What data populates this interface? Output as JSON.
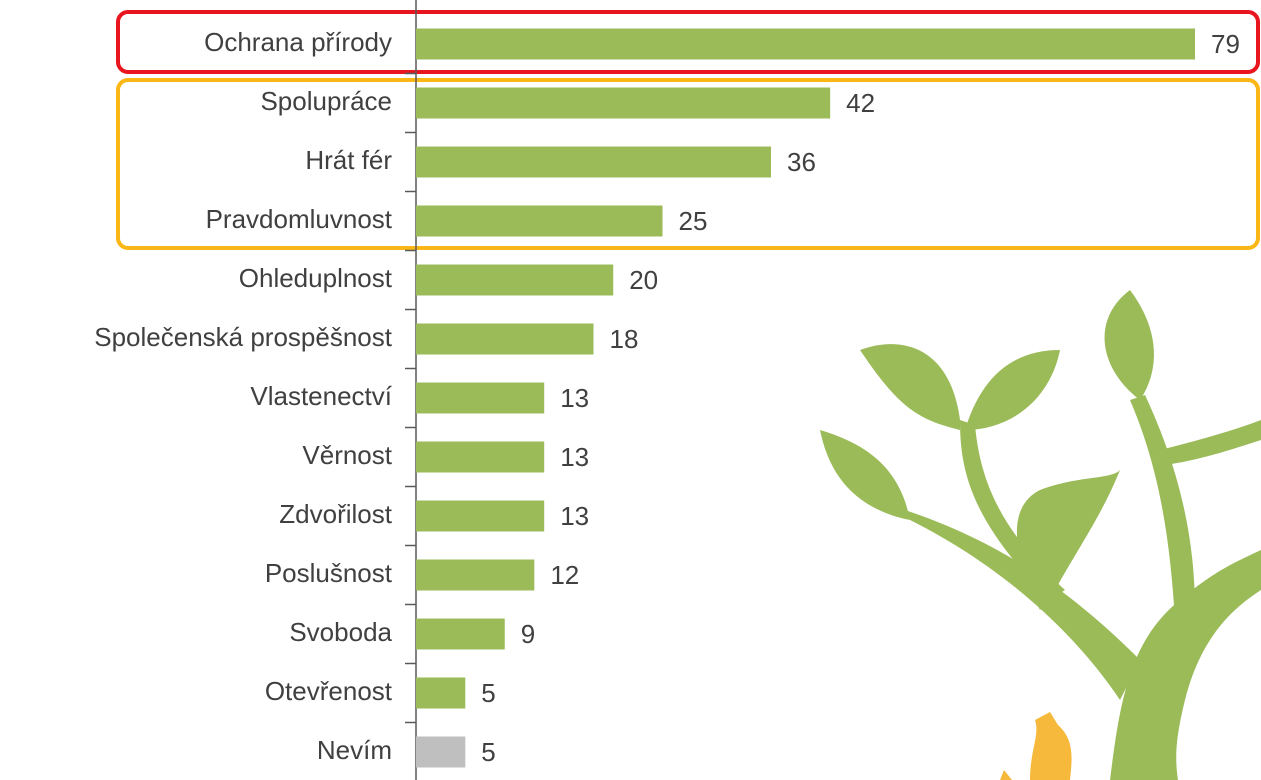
{
  "chart_data": {
    "type": "barh",
    "categories": [
      "Ochrana přírody",
      "Spolupráce",
      "Hrát fér",
      "Pravdomluvnost",
      "Ohleduplnost",
      "Společenská prospěšnost",
      "Vlastenectví",
      "Věrnost",
      "Zdvořilost",
      "Poslušnost",
      "Svoboda",
      "Otevřenost",
      "Nevím"
    ],
    "values": [
      79,
      42,
      36,
      25,
      20,
      18,
      13,
      13,
      13,
      12,
      9,
      5,
      5
    ],
    "colors": [
      "#9bbb59",
      "#9bbb59",
      "#9bbb59",
      "#9bbb59",
      "#9bbb59",
      "#9bbb59",
      "#9bbb59",
      "#9bbb59",
      "#9bbb59",
      "#9bbb59",
      "#9bbb59",
      "#9bbb59",
      "#bfbfbf"
    ]
  }
}
